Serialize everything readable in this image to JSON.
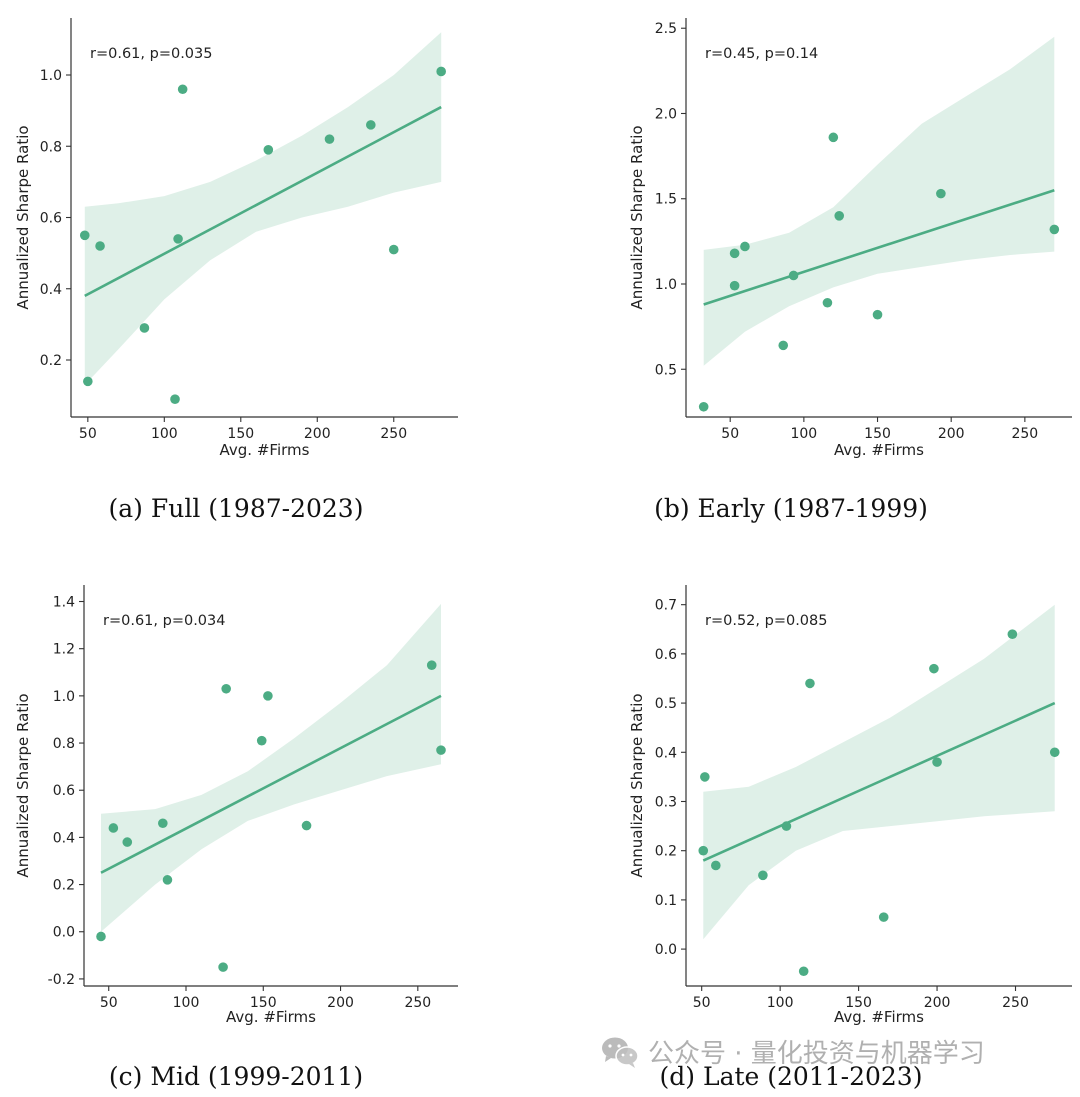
{
  "colors": {
    "accent": "#4cac84",
    "band": "#dff0e8",
    "axis": "#333333"
  },
  "watermark": {
    "text": "公众号 · 量化投资与机器学习",
    "icon": "wechat-icon"
  },
  "chart_data": [
    {
      "type": "scatter",
      "caption": "(a) Full (1987-2023)",
      "annotation": "r=0.61, p=0.035",
      "xlabel": "Avg. #Firms",
      "ylabel": "Annualized Sharpe Ratio",
      "xlim": [
        39,
        292
      ],
      "ylim": [
        0.04,
        1.16
      ],
      "xticks": [
        50,
        100,
        150,
        200,
        250
      ],
      "yticks": [
        0.2,
        0.4,
        0.6,
        0.8,
        1.0
      ],
      "yfmt": 1,
      "points": [
        [
          48,
          0.55
        ],
        [
          50,
          0.14
        ],
        [
          58,
          0.52
        ],
        [
          87,
          0.29
        ],
        [
          107,
          0.09
        ],
        [
          109,
          0.54
        ],
        [
          112,
          0.96
        ],
        [
          168,
          0.79
        ],
        [
          208,
          0.82
        ],
        [
          235,
          0.86
        ],
        [
          250,
          0.51
        ],
        [
          281,
          1.01
        ]
      ],
      "fit": [
        [
          48,
          0.38
        ],
        [
          281,
          0.91
        ]
      ],
      "band_upper": [
        [
          48,
          0.63
        ],
        [
          70,
          0.64
        ],
        [
          100,
          0.66
        ],
        [
          130,
          0.7
        ],
        [
          160,
          0.76
        ],
        [
          190,
          0.83
        ],
        [
          220,
          0.91
        ],
        [
          250,
          1.0
        ],
        [
          281,
          1.12
        ]
      ],
      "band_lower": [
        [
          48,
          0.13
        ],
        [
          70,
          0.23
        ],
        [
          100,
          0.37
        ],
        [
          130,
          0.48
        ],
        [
          160,
          0.56
        ],
        [
          190,
          0.6
        ],
        [
          220,
          0.63
        ],
        [
          250,
          0.67
        ],
        [
          281,
          0.7
        ]
      ]
    },
    {
      "type": "scatter",
      "caption": "(b) Early (1987-1999)",
      "annotation": "r=0.45, p=0.14",
      "xlabel": "Avg. #Firms",
      "ylabel": "Annualized Sharpe Ratio",
      "xlim": [
        20,
        282
      ],
      "ylim": [
        0.22,
        2.56
      ],
      "xticks": [
        50,
        100,
        150,
        200,
        250
      ],
      "yticks": [
        0.5,
        1.0,
        1.5,
        2.0,
        2.5
      ],
      "yfmt": 1,
      "points": [
        [
          32,
          0.28
        ],
        [
          53,
          0.99
        ],
        [
          53,
          1.18
        ],
        [
          60,
          1.22
        ],
        [
          86,
          0.64
        ],
        [
          93,
          1.05
        ],
        [
          116,
          0.89
        ],
        [
          120,
          1.86
        ],
        [
          124,
          1.4
        ],
        [
          150,
          0.82
        ],
        [
          193,
          1.53
        ],
        [
          270,
          1.32
        ]
      ],
      "fit": [
        [
          32,
          0.88
        ],
        [
          270,
          1.55
        ]
      ],
      "band_upper": [
        [
          32,
          1.2
        ],
        [
          60,
          1.23
        ],
        [
          90,
          1.3
        ],
        [
          120,
          1.45
        ],
        [
          150,
          1.7
        ],
        [
          180,
          1.94
        ],
        [
          210,
          2.1
        ],
        [
          240,
          2.26
        ],
        [
          270,
          2.45
        ]
      ],
      "band_lower": [
        [
          32,
          0.52
        ],
        [
          60,
          0.72
        ],
        [
          90,
          0.87
        ],
        [
          120,
          0.98
        ],
        [
          150,
          1.06
        ],
        [
          180,
          1.1
        ],
        [
          210,
          1.14
        ],
        [
          240,
          1.17
        ],
        [
          270,
          1.19
        ]
      ]
    },
    {
      "type": "scatter",
      "caption": "(c) Mid (1999-2011)",
      "annotation": "r=0.61, p=0.034",
      "xlabel": "Avg. #Firms",
      "ylabel": "Annualized Sharpe Ratio",
      "xlim": [
        34,
        276
      ],
      "ylim": [
        -0.23,
        1.47
      ],
      "xticks": [
        50,
        100,
        150,
        200,
        250
      ],
      "yticks": [
        -0.2,
        0.0,
        0.2,
        0.4,
        0.6,
        0.8,
        1.0,
        1.2,
        1.4
      ],
      "yfmt": 1,
      "points": [
        [
          45,
          -0.02
        ],
        [
          53,
          0.44
        ],
        [
          62,
          0.38
        ],
        [
          85,
          0.46
        ],
        [
          88,
          0.22
        ],
        [
          124,
          -0.15
        ],
        [
          126,
          1.03
        ],
        [
          149,
          0.81
        ],
        [
          153,
          1.0
        ],
        [
          178,
          0.45
        ],
        [
          259,
          1.13
        ],
        [
          265,
          0.77
        ]
      ],
      "fit": [
        [
          45,
          0.25
        ],
        [
          265,
          1.0
        ]
      ],
      "band_upper": [
        [
          45,
          0.5
        ],
        [
          80,
          0.52
        ],
        [
          110,
          0.58
        ],
        [
          140,
          0.68
        ],
        [
          170,
          0.82
        ],
        [
          200,
          0.97
        ],
        [
          230,
          1.13
        ],
        [
          265,
          1.39
        ]
      ],
      "band_lower": [
        [
          45,
          0.0
        ],
        [
          80,
          0.2
        ],
        [
          110,
          0.35
        ],
        [
          140,
          0.47
        ],
        [
          170,
          0.54
        ],
        [
          200,
          0.6
        ],
        [
          230,
          0.66
        ],
        [
          265,
          0.71
        ]
      ]
    },
    {
      "type": "scatter",
      "caption": "(d) Late (2011-2023)",
      "annotation": "r=0.52, p=0.085",
      "xlabel": "Avg. #Firms",
      "ylabel": "Annualized Sharpe Ratio",
      "xlim": [
        40,
        286
      ],
      "ylim": [
        -0.075,
        0.74
      ],
      "xticks": [
        50,
        100,
        150,
        200,
        250
      ],
      "yticks": [
        0.0,
        0.1,
        0.2,
        0.3,
        0.4,
        0.5,
        0.6,
        0.7
      ],
      "yfmt": 1,
      "points": [
        [
          51,
          0.2
        ],
        [
          52,
          0.35
        ],
        [
          59,
          0.17
        ],
        [
          89,
          0.15
        ],
        [
          104,
          0.25
        ],
        [
          115,
          -0.045
        ],
        [
          119,
          0.54
        ],
        [
          166,
          0.065
        ],
        [
          198,
          0.57
        ],
        [
          200,
          0.38
        ],
        [
          248,
          0.64
        ],
        [
          275,
          0.4
        ]
      ],
      "fit": [
        [
          51,
          0.18
        ],
        [
          275,
          0.5
        ]
      ],
      "band_upper": [
        [
          51,
          0.32
        ],
        [
          80,
          0.33
        ],
        [
          110,
          0.37
        ],
        [
          140,
          0.42
        ],
        [
          170,
          0.47
        ],
        [
          200,
          0.53
        ],
        [
          230,
          0.59
        ],
        [
          275,
          0.7
        ]
      ],
      "band_lower": [
        [
          51,
          0.02
        ],
        [
          80,
          0.13
        ],
        [
          110,
          0.2
        ],
        [
          140,
          0.24
        ],
        [
          170,
          0.25
        ],
        [
          200,
          0.26
        ],
        [
          230,
          0.27
        ],
        [
          275,
          0.28
        ]
      ]
    }
  ]
}
